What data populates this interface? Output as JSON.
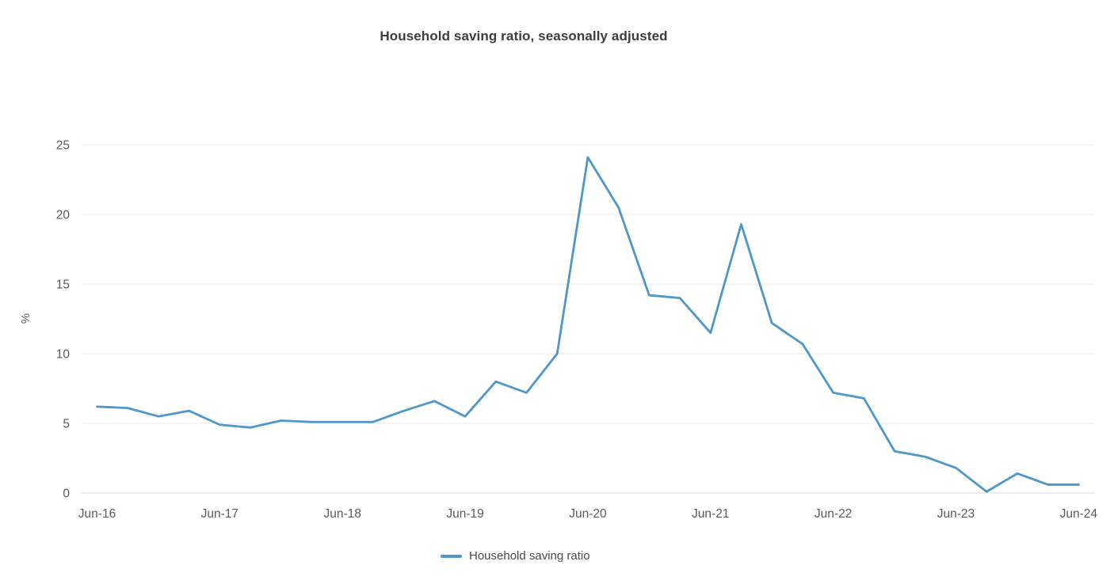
{
  "chart_data": {
    "type": "line",
    "title": "Household saving ratio, seasonally adjusted",
    "ylabel": "%",
    "xlabel": "",
    "x": [
      "Jun-16",
      "Sep-16",
      "Dec-16",
      "Mar-17",
      "Jun-17",
      "Sep-17",
      "Dec-17",
      "Mar-18",
      "Jun-18",
      "Sep-18",
      "Dec-18",
      "Mar-19",
      "Jun-19",
      "Sep-19",
      "Dec-19",
      "Mar-20",
      "Jun-20",
      "Sep-20",
      "Dec-20",
      "Mar-21",
      "Jun-21",
      "Sep-21",
      "Dec-21",
      "Mar-22",
      "Jun-22",
      "Sep-22",
      "Dec-22",
      "Mar-23",
      "Jun-23",
      "Sep-23",
      "Dec-23",
      "Mar-24",
      "Jun-24"
    ],
    "series": [
      {
        "name": "Household saving ratio",
        "color": "#4e97c8",
        "values": [
          6.2,
          6.1,
          5.5,
          5.9,
          4.9,
          4.7,
          5.2,
          5.1,
          5.1,
          5.1,
          5.9,
          6.6,
          5.5,
          8.0,
          7.2,
          10.0,
          24.1,
          20.5,
          14.2,
          14.0,
          11.5,
          19.3,
          12.2,
          10.7,
          7.2,
          6.8,
          3.0,
          2.6,
          1.8,
          0.1,
          1.4,
          0.6,
          0.6
        ]
      }
    ],
    "x_tick_labels": [
      "Jun-16",
      "Jun-17",
      "Jun-18",
      "Jun-19",
      "Jun-20",
      "Jun-21",
      "Jun-22",
      "Jun-23",
      "Jun-24"
    ],
    "y_ticks": [
      0,
      5,
      10,
      15,
      20,
      25
    ],
    "ylim": [
      0,
      25
    ],
    "grid": "horizontal-only",
    "legend_position": "bottom",
    "colors": {
      "line": "#4e97c8",
      "gridline": "#ebebeb",
      "zero_line": "#d9d9d9",
      "tick_text": "#5a5a5a",
      "title_text": "#3d3d3d",
      "legend_text": "#4a4a4a"
    }
  }
}
